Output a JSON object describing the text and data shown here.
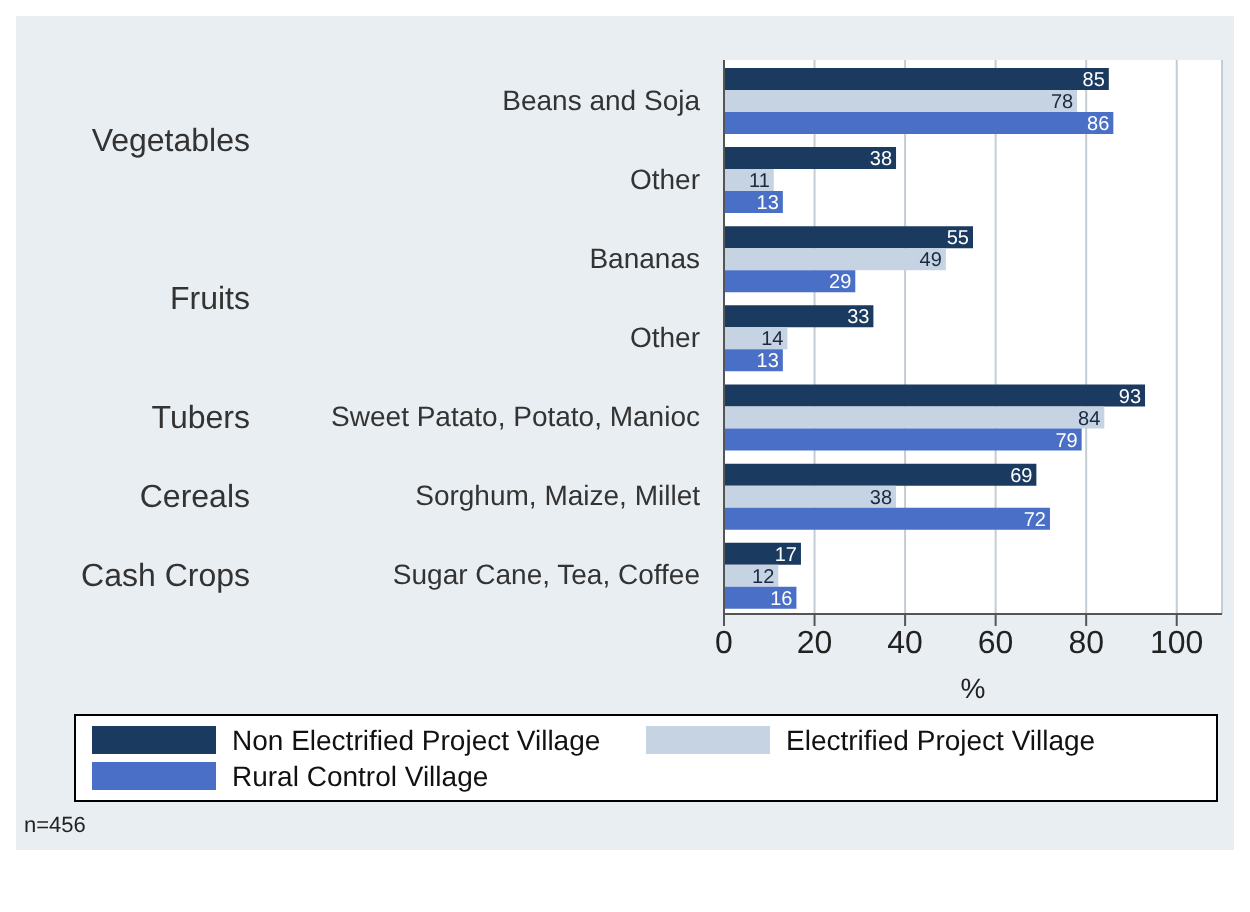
{
  "chart_data": {
    "type": "bar",
    "orientation": "horizontal",
    "xlabel": "%",
    "categories": [
      "Beans and Soja",
      "Other",
      "Bananas",
      "Other",
      "Sweet Patato, Potato, Manioc",
      "Sorghum, Maize, Millet",
      "Sugar Cane, Tea, Coffee"
    ],
    "series": [
      {
        "name": "Non  Electrified Project Village",
        "color": "#1b3a5f",
        "values": [
          85,
          38,
          55,
          33,
          93,
          69,
          17
        ]
      },
      {
        "name": "Electrified Project Village",
        "color": "#c5d3e3",
        "values": [
          78,
          11,
          49,
          14,
          84,
          38,
          12
        ]
      },
      {
        "name": "Rural Control Village",
        "color": "#4a6fc6",
        "values": [
          86,
          13,
          29,
          13,
          79,
          72,
          16
        ]
      }
    ],
    "xlim": [
      0,
      110
    ],
    "xticks": [
      0,
      20,
      40,
      60,
      80,
      100
    ],
    "grid": "x",
    "legend": "bottom",
    "data_labels": true,
    "annotations": [
      "Vegetables",
      "Fruits",
      "Tubers",
      "Cereals",
      "Cash Crops",
      "n=456"
    ]
  }
}
